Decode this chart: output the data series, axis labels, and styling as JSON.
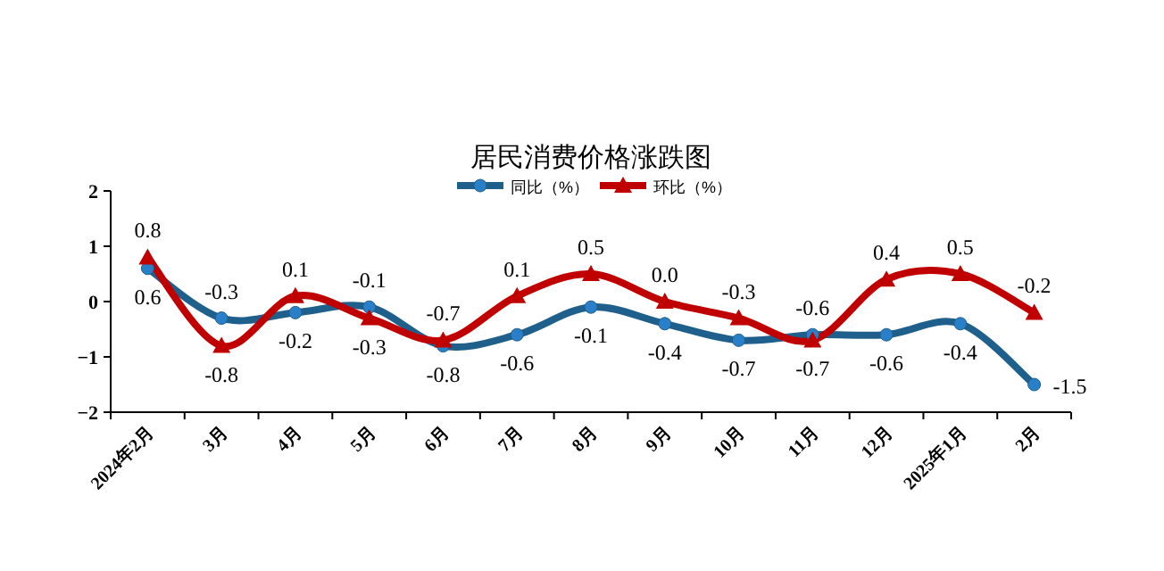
{
  "chart_data": {
    "type": "line",
    "title": "居民消费价格涨跌图",
    "categories": [
      "2024年2月",
      "3月",
      "4月",
      "5月",
      "6月",
      "7月",
      "8月",
      "9月",
      "10月",
      "11月",
      "12月",
      "2025年1月",
      "2月"
    ],
    "series": [
      {
        "name": "同比（%）",
        "color": "#1f5f8b",
        "marker": "circle",
        "values": [
          0.6,
          -0.3,
          -0.2,
          -0.1,
          -0.8,
          -0.6,
          -0.1,
          -0.4,
          -0.7,
          -0.6,
          -0.6,
          -0.4,
          -1.5
        ],
        "value_labels": [
          "0.6",
          "-0.3",
          "-0.2",
          "-0.1",
          "-0.8",
          "-0.6",
          "-0.1",
          "-0.4",
          "-0.7",
          "-0.6",
          "-0.6",
          "-0.4",
          "-1.5"
        ]
      },
      {
        "name": "环比（%）",
        "color": "#c00000",
        "marker": "triangle",
        "values": [
          0.8,
          -0.8,
          0.1,
          -0.3,
          -0.7,
          0.1,
          0.5,
          0.0,
          -0.3,
          -0.7,
          0.4,
          0.5,
          -0.2
        ],
        "value_labels": [
          "0.8",
          "-0.8",
          "0.1",
          "-0.3",
          "-0.7",
          "0.1",
          "0.5",
          "0.0",
          "-0.3",
          "-0.7",
          "0.4",
          "0.5",
          "-0.2"
        ]
      }
    ],
    "ylim": [
      -2,
      2
    ],
    "yticks": [
      -2,
      -1,
      0,
      1,
      2
    ],
    "grid": false,
    "legend": "top"
  }
}
